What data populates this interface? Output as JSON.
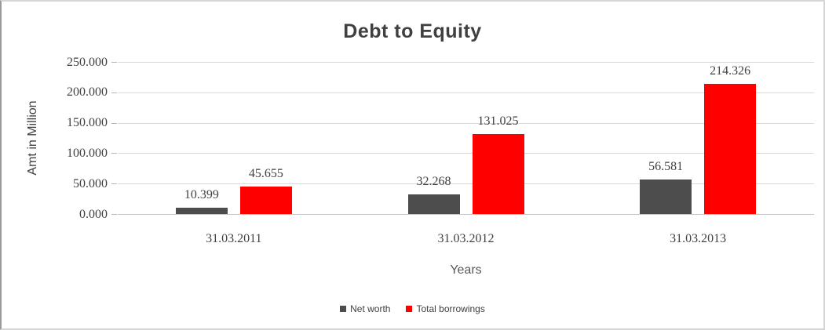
{
  "chart_data": {
    "type": "bar",
    "title": "Debt to Equity",
    "xlabel": "Years",
    "ylabel": "Amt in Million",
    "categories": [
      "31.03.2011",
      "31.03.2012",
      "31.03.2013"
    ],
    "series": [
      {
        "name": "Net worth",
        "color": "#4d4d4d",
        "values": [
          10.399,
          32.268,
          56.581
        ]
      },
      {
        "name": "Total borrowings",
        "color": "#ff0000",
        "values": [
          45.655,
          131.025,
          214.326
        ]
      }
    ],
    "ylim": [
      0,
      250
    ],
    "ytick_step": 50,
    "ytick_labels": [
      "0.000",
      "50.000",
      "100.000",
      "150.000",
      "200.000",
      "250.000"
    ],
    "value_label_decimals": 3,
    "grid": true,
    "legend_position": "bottom"
  }
}
